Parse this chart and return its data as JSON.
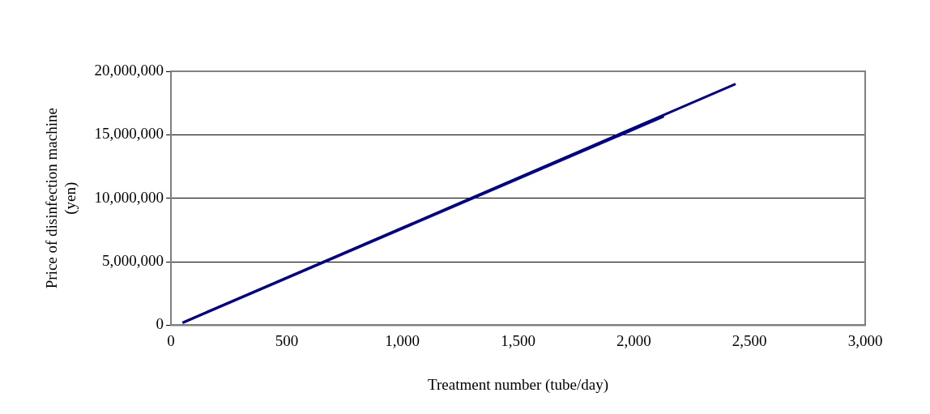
{
  "chart_data": {
    "type": "line",
    "xlabel": "Treatment number (tube/day)",
    "ylabel": "Price of disinfection machine (yen)",
    "series": [
      {
        "color": "#00008b",
        "x": [
          50,
          2440
        ],
        "values": [
          200000,
          19000000
        ]
      },
      {
        "color": "#00008b",
        "x": [
          50,
          2130
        ],
        "values": [
          200000,
          16450000
        ]
      }
    ],
    "xlim": [
      0,
      3000
    ],
    "xticks": [
      {
        "value": 0,
        "label": "0"
      },
      {
        "value": 500,
        "label": "500"
      },
      {
        "value": 1000,
        "label": "1,000"
      },
      {
        "value": 1500,
        "label": "1,500"
      },
      {
        "value": 2000,
        "label": "2,000"
      },
      {
        "value": 2500,
        "label": "2,500"
      },
      {
        "value": 3000,
        "label": "3,000"
      }
    ],
    "ylim": [
      0,
      20000000
    ],
    "yticks": [
      {
        "value": 0,
        "label": "0"
      },
      {
        "value": 5000000,
        "label": "5,000,000"
      },
      {
        "value": 10000000,
        "label": "10,000,000"
      },
      {
        "value": 15000000,
        "label": "15,000,000"
      },
      {
        "value": 20000000,
        "label": "20,000,000"
      }
    ],
    "grid": "y",
    "legend": false,
    "marker": "none",
    "line_style": "solid"
  }
}
